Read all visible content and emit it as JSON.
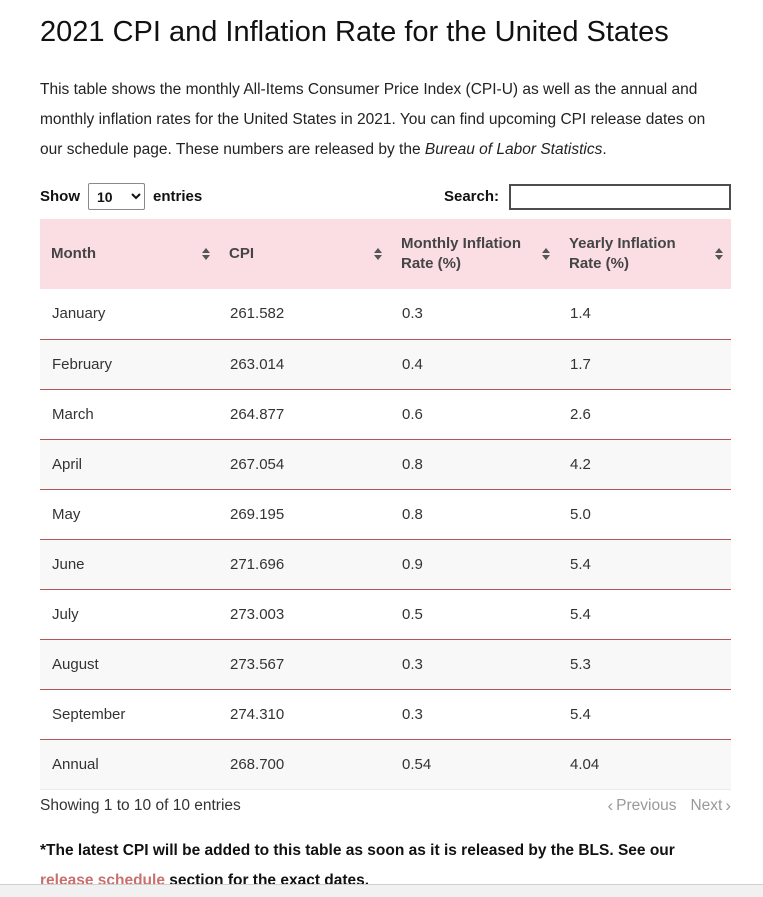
{
  "page": {
    "title": "2021 CPI and Inflation Rate for the United States",
    "intro": {
      "before_italic": "This table shows the monthly All-Items Consumer Price Index (CPI-U) as well as the annual and monthly inflation rates for the United States in 2021. You can find upcoming CPI release dates on our schedule page. These numbers are released by the ",
      "italic": "Bureau of Labor Statistics",
      "after_italic": "."
    }
  },
  "controls": {
    "show_label": "Show",
    "entries_label": "entries",
    "page_length_value": "10",
    "search_label": "Search:",
    "search_value": ""
  },
  "table": {
    "columns": [
      {
        "label": "Month"
      },
      {
        "label": "CPI"
      },
      {
        "label": "Monthly Inflation Rate (%)"
      },
      {
        "label": "Yearly Inflation Rate (%)"
      }
    ],
    "rows": [
      {
        "month": "January",
        "cpi": "261.582",
        "monthly": "0.3",
        "yearly": "1.4"
      },
      {
        "month": "February",
        "cpi": "263.014",
        "monthly": "0.4",
        "yearly": "1.7"
      },
      {
        "month": "March",
        "cpi": "264.877",
        "monthly": "0.6",
        "yearly": "2.6"
      },
      {
        "month": "April",
        "cpi": "267.054",
        "monthly": "0.8",
        "yearly": "4.2"
      },
      {
        "month": "May",
        "cpi": "269.195",
        "monthly": "0.8",
        "yearly": "5.0"
      },
      {
        "month": "June",
        "cpi": "271.696",
        "monthly": "0.9",
        "yearly": "5.4"
      },
      {
        "month": "July",
        "cpi": "273.003",
        "monthly": "0.5",
        "yearly": "5.4"
      },
      {
        "month": "August",
        "cpi": "273.567",
        "monthly": "0.3",
        "yearly": "5.3"
      },
      {
        "month": "September",
        "cpi": "274.310",
        "monthly": "0.3",
        "yearly": "5.4"
      },
      {
        "month": "Annual",
        "cpi": "268.700",
        "monthly": "0.54",
        "yearly": "4.04"
      }
    ]
  },
  "footer": {
    "info": "Showing 1 to 10 of 10 entries",
    "prev_chevron": "‹",
    "previous_label": "Previous",
    "next_label": "Next",
    "next_chevron": "›"
  },
  "footnote": {
    "before_link": "*The latest CPI will be added to this table as soon as it is released by the BLS. See our ",
    "link": "release schedule",
    "after_link": " section for the exact dates."
  },
  "colors": {
    "header_background": "#fbdee3",
    "row_alternate_background": "#f8f8f8",
    "row_border": "#b2585a",
    "link": "#c9706e",
    "pagination_disabled": "#999999",
    "scrollbar_strip": "#f1f1f1"
  }
}
